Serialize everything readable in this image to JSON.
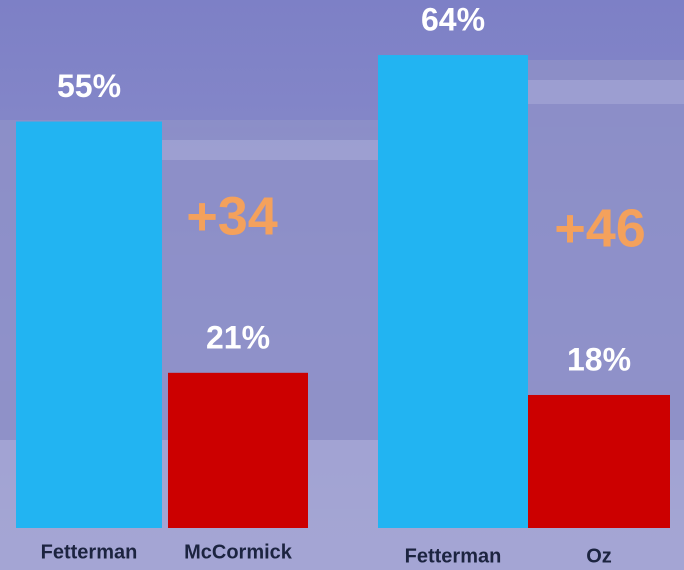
{
  "chart_data": [
    {
      "type": "bar",
      "categories": [
        "Fetterman",
        "McCormick"
      ],
      "values": [
        55,
        21
      ],
      "value_labels": [
        "55%",
        "21%"
      ],
      "colors": [
        "#22b4f2",
        "#cc0000"
      ],
      "annotation": "+34"
    },
    {
      "type": "bar",
      "categories": [
        "Fetterman",
        "Oz"
      ],
      "values": [
        64,
        18
      ],
      "value_labels": [
        "64%",
        "18%"
      ],
      "colors": [
        "#22b4f2",
        "#cc0000"
      ],
      "annotation": "+46"
    }
  ]
}
